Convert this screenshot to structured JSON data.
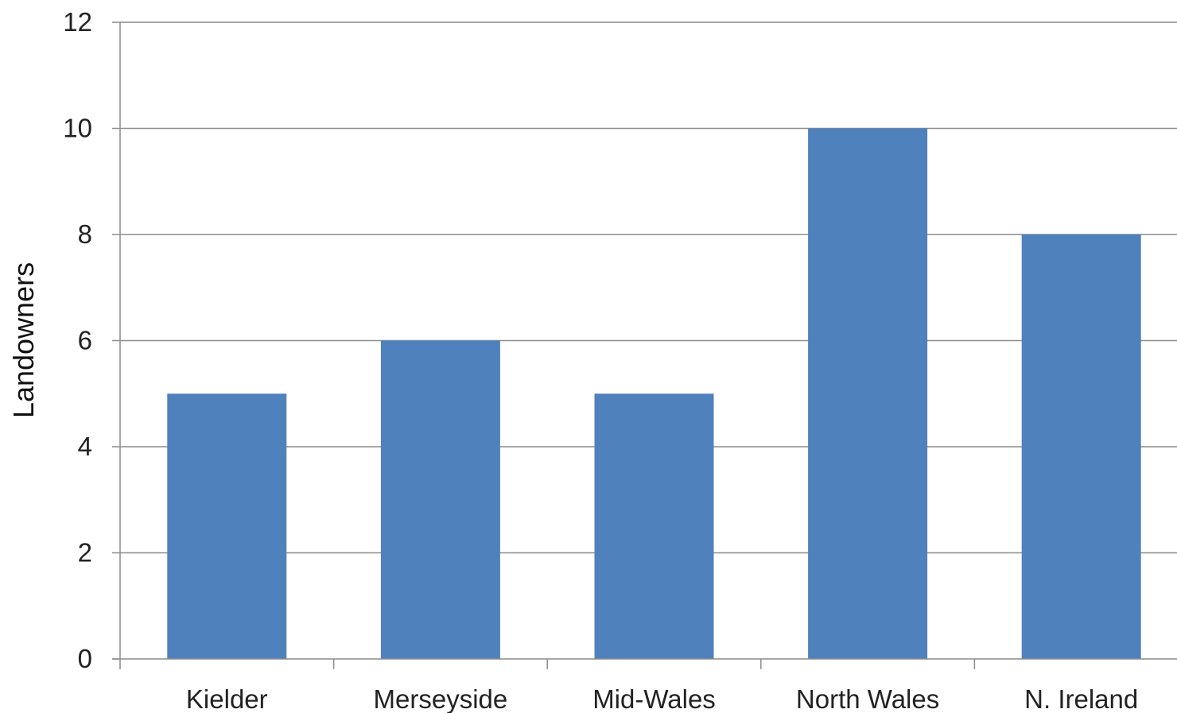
{
  "chart_data": {
    "type": "bar",
    "title": "",
    "xlabel": "",
    "ylabel": "Landowners",
    "categories": [
      "Kielder",
      "Merseyside",
      "Mid-Wales",
      "North Wales",
      "N. Ireland"
    ],
    "values": [
      5,
      6,
      5,
      10,
      8
    ],
    "ylim": [
      0,
      12
    ],
    "yticks": [
      0,
      2,
      4,
      6,
      8,
      10,
      12
    ],
    "grid": true,
    "legend": "none",
    "colors": {
      "bar": "#4f81bd"
    }
  }
}
